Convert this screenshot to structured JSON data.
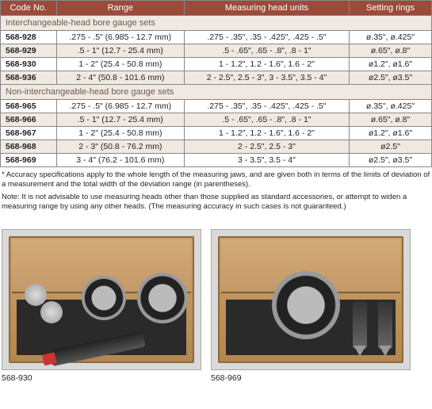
{
  "table": {
    "headers": {
      "code": "Code No.",
      "range": "Range",
      "heads": "Measuring head units",
      "rings": "Setting rings"
    },
    "section1": "Interchangeable-head bore gauge sets",
    "section2": "Non-interchangeable-head bore gauge sets",
    "rows1": [
      {
        "code": "568-928",
        "range": ".275 - .5\" (6.985 - 12.7 mm)",
        "heads": ".275 - .35\", .35 - .425\", .425 - .5\"",
        "rings": "ø.35\", ø.425\""
      },
      {
        "code": "568-929",
        "range": ".5 - 1\" (12.7 - 25.4 mm)",
        "heads": ".5 - .65\", .65 - .8\", .8 - 1\"",
        "rings": "ø.65\", ø.8\""
      },
      {
        "code": "568-930",
        "range": "1 - 2\" (25.4 - 50.8 mm)",
        "heads": "1 - 1.2\", 1.2 - 1.6\", 1.6 - 2\"",
        "rings": "ø1.2\", ø1.6\""
      },
      {
        "code": "568-936",
        "range": "2 - 4\" (50.8 - 101.6 mm)",
        "heads": "2 - 2.5\", 2.5 - 3\", 3 - 3.5\", 3.5 - 4\"",
        "rings": "ø2.5\", ø3.5\""
      }
    ],
    "rows2": [
      {
        "code": "568-965",
        "range": ".275 - .5\" (6.985 - 12.7 mm)",
        "heads": ".275 - .35\", .35 - .425\", .425 - .5\"",
        "rings": "ø.35\", ø.425\""
      },
      {
        "code": "568-966",
        "range": ".5 - 1\" (12.7 - 25.4 mm)",
        "heads": ".5 - .65\", .65 - .8\", .8 - 1\"",
        "rings": "ø.65\", ø.8\""
      },
      {
        "code": "568-967",
        "range": "1 - 2\" (25.4 - 50.8 mm)",
        "heads": "1 - 1.2\", 1.2 - 1.6\", 1.6 - 2\"",
        "rings": "ø1.2\", ø1.6\""
      },
      {
        "code": "568-968",
        "range": "2 - 3\" (50.8 - 76.2 mm)",
        "heads": "2 - 2.5\", 2.5 - 3\"",
        "rings": "ø2.5\""
      },
      {
        "code": "568-969",
        "range": "3 - 4\" (76.2 - 101.6 mm)",
        "heads": "3 - 3.5\", 3.5 - 4\"",
        "rings": "ø2.5\", ø3.5\""
      }
    ]
  },
  "footnote1": "* Accuracy specifications apply to the whole length of the measuring jaws, and are given both in terms of the limits of deviation of a measurement and the total width of the deviation range (in parentheses).",
  "footnote2": "Note: It is not advisable to use measuring heads other than those supplied as standard accessories, or attempt to widen a measuring range by using any other heads. (The measuring accuracy in such cases is not guaranteed.)",
  "photo_captions": {
    "left": "568-930",
    "right": "568-969"
  }
}
